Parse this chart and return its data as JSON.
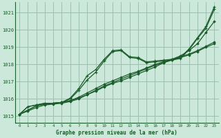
{
  "title": "Graphe pression niveau de la mer (hPa)",
  "bg_color": "#cce8da",
  "grid_color": "#9dbfb0",
  "line_color": "#1a5c2a",
  "xlim": [
    -0.5,
    23.5
  ],
  "ylim": [
    1014.6,
    1021.6
  ],
  "yticks": [
    1015,
    1016,
    1017,
    1018,
    1019,
    1020,
    1021
  ],
  "xticks": [
    0,
    1,
    2,
    3,
    4,
    5,
    6,
    7,
    8,
    9,
    10,
    11,
    12,
    13,
    14,
    15,
    16,
    17,
    18,
    19,
    20,
    21,
    22,
    23
  ],
  "series_hump": [
    1015.1,
    1015.55,
    1015.65,
    1015.75,
    1015.75,
    1015.8,
    1016.05,
    1016.6,
    1017.35,
    1017.7,
    1018.3,
    1018.8,
    1018.85,
    1018.45,
    1018.4,
    1018.15,
    1018.2,
    1018.25,
    1018.3,
    1018.4,
    1018.9,
    1019.55,
    1020.2,
    1021.35
  ],
  "series_hump2": [
    1015.1,
    1015.55,
    1015.65,
    1015.75,
    1015.75,
    1015.8,
    1016.0,
    1016.5,
    1017.1,
    1017.55,
    1018.2,
    1018.75,
    1018.8,
    1018.4,
    1018.35,
    1018.1,
    1018.15,
    1018.2,
    1018.25,
    1018.35,
    1018.85,
    1019.5,
    1020.1,
    1021.2
  ],
  "series_linear1": [
    1015.1,
    1015.35,
    1015.6,
    1015.7,
    1015.75,
    1015.8,
    1015.9,
    1016.1,
    1016.35,
    1016.6,
    1016.85,
    1017.05,
    1017.25,
    1017.45,
    1017.6,
    1017.8,
    1018.0,
    1018.15,
    1018.3,
    1018.45,
    1018.6,
    1018.8,
    1019.05,
    1019.3
  ],
  "series_linear2": [
    1015.1,
    1015.3,
    1015.5,
    1015.65,
    1015.7,
    1015.75,
    1015.85,
    1016.0,
    1016.25,
    1016.5,
    1016.75,
    1016.95,
    1017.15,
    1017.35,
    1017.55,
    1017.75,
    1017.95,
    1018.1,
    1018.25,
    1018.4,
    1018.55,
    1018.75,
    1019.0,
    1019.2
  ],
  "series_steep": [
    1015.1,
    1015.35,
    1015.6,
    1015.7,
    1015.75,
    1015.8,
    1015.9,
    1016.05,
    1016.25,
    1016.45,
    1016.7,
    1016.9,
    1017.05,
    1017.25,
    1017.45,
    1017.65,
    1017.85,
    1018.1,
    1018.3,
    1018.5,
    1018.8,
    1019.2,
    1019.85,
    1020.5
  ]
}
